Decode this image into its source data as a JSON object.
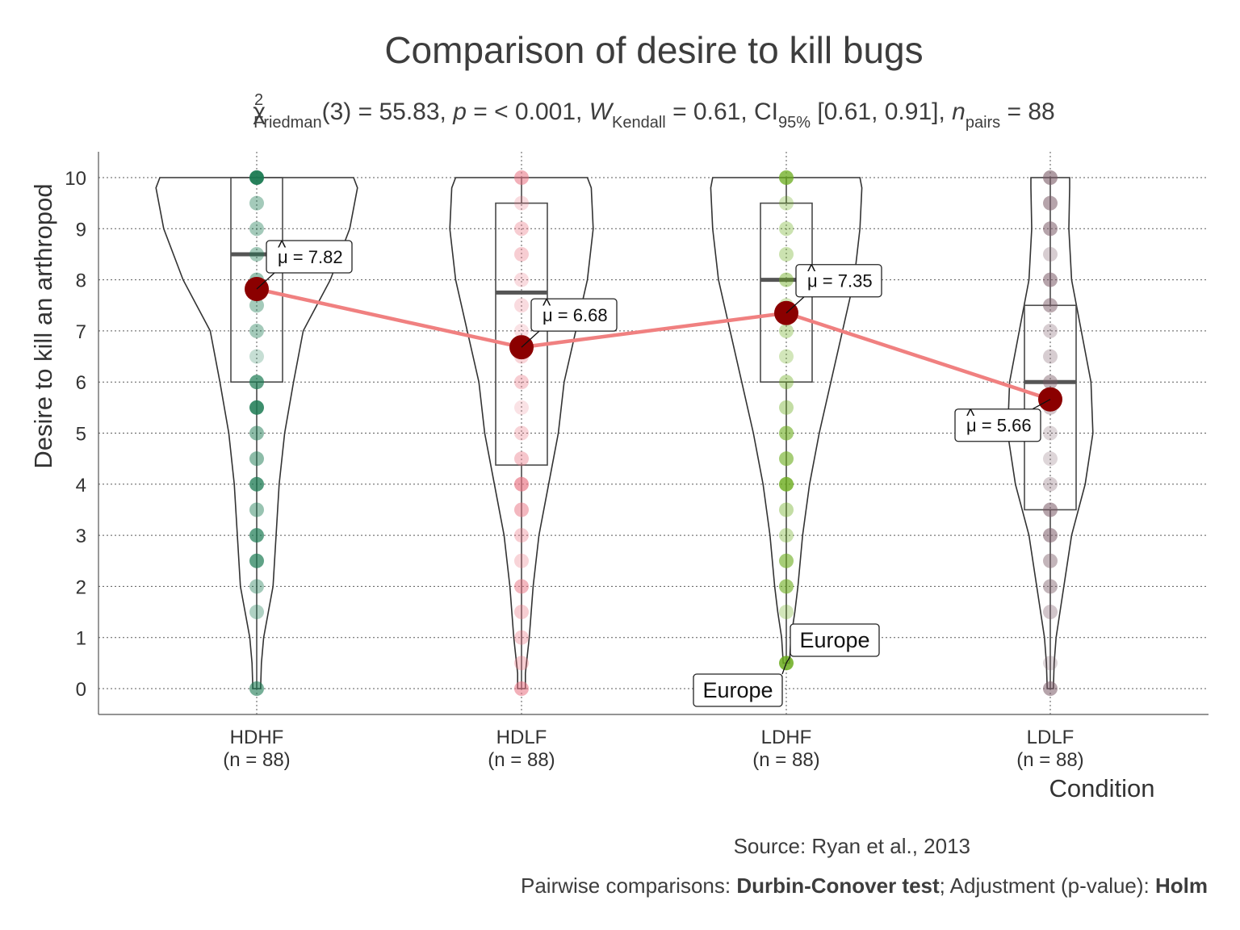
{
  "chart_data": {
    "type": "violin",
    "title": "Comparison of desire to kill bugs",
    "subtitle": {
      "chi": "χ",
      "chi_sup": "2",
      "chi_sub": "Friedman",
      "stat_text": "(3) = 55.83, ",
      "p_symbol": "p",
      "p_text": " = < 0.001, ",
      "w_symbol": "W",
      "w_sub": "Kendall",
      "w_text": " = 0.61, CI",
      "ci_sub": "95%",
      "ci_text": " [0.61, 0.91], ",
      "n_symbol": "n",
      "n_sub": "pairs",
      "n_text": " = 88"
    },
    "xlabel": "Condition",
    "ylabel": "Desire to kill an arthropod",
    "ylim": [
      -0.5,
      10.5
    ],
    "yticks": [
      0,
      1,
      2,
      3,
      4,
      5,
      6,
      7,
      8,
      9,
      10
    ],
    "grid": true,
    "categories": [
      {
        "name": "HDHF",
        "n_label": "(n = 88)",
        "color": "#1b7a52",
        "mean": 7.82,
        "mean_label": "7.82",
        "median": 8.5,
        "q1": 6.0,
        "q3": 10.0,
        "whisker_low": 0.0,
        "whisker_high": 10.0,
        "points": [
          10,
          9.5,
          9,
          8.5,
          8,
          7.5,
          7,
          6.5,
          6,
          5.5,
          5,
          4.5,
          4,
          3.5,
          3,
          2.5,
          2,
          1.5,
          0
        ],
        "point_opacity": [
          0.95,
          0.4,
          0.4,
          0.4,
          0.45,
          0.4,
          0.4,
          0.25,
          0.7,
          0.85,
          0.5,
          0.5,
          0.75,
          0.45,
          0.7,
          0.7,
          0.4,
          0.35,
          0.6
        ],
        "density": [
          [
            0,
            0.1
          ],
          [
            0.5,
            0.12
          ],
          [
            1,
            0.18
          ],
          [
            1.5,
            0.3
          ],
          [
            2,
            0.42
          ],
          [
            3,
            0.5
          ],
          [
            4,
            0.58
          ],
          [
            5,
            0.72
          ],
          [
            6,
            0.95
          ],
          [
            7,
            1.2
          ],
          [
            8,
            1.9
          ],
          [
            9,
            2.4
          ],
          [
            9.8,
            2.6
          ],
          [
            10,
            2.5
          ]
        ]
      },
      {
        "name": "HDLF",
        "n_label": "(n = 88)",
        "color": "#e8707f",
        "mean": 6.68,
        "mean_label": "6.68",
        "median": 7.75,
        "q1": 4.375,
        "q3": 9.5,
        "whisker_low": 0.0,
        "whisker_high": 10.0,
        "points": [
          10,
          9.5,
          9,
          8.5,
          8,
          7.5,
          7,
          6.5,
          6,
          5.5,
          5,
          4.5,
          4,
          3.5,
          3,
          2.5,
          2,
          1.5,
          1,
          0.5,
          0
        ],
        "point_opacity": [
          0.55,
          0.25,
          0.35,
          0.35,
          0.25,
          0.25,
          0.2,
          0.3,
          0.35,
          0.2,
          0.3,
          0.4,
          0.65,
          0.5,
          0.35,
          0.3,
          0.5,
          0.35,
          0.35,
          0.35,
          0.55
        ],
        "density": [
          [
            0,
            0.1
          ],
          [
            0.3,
            0.1
          ],
          [
            1,
            0.2
          ],
          [
            2,
            0.3
          ],
          [
            3,
            0.45
          ],
          [
            4,
            0.7
          ],
          [
            5,
            0.95
          ],
          [
            6,
            1.1
          ],
          [
            7,
            1.4
          ],
          [
            8,
            1.7
          ],
          [
            9,
            1.85
          ],
          [
            9.8,
            1.8
          ],
          [
            10,
            1.7
          ]
        ]
      },
      {
        "name": "LDHF",
        "n_label": "(n = 88)",
        "color": "#6aab1c",
        "mean": 7.35,
        "mean_label": "7.35",
        "median": 8.0,
        "q1": 6.0,
        "q3": 9.5,
        "whisker_low": 0.5,
        "whisker_high": 10.0,
        "points": [
          10,
          9.5,
          9,
          8.5,
          8,
          7.5,
          7,
          6.5,
          6,
          5.5,
          5,
          4.5,
          4,
          3.5,
          3,
          2.5,
          2,
          1.5,
          0.5
        ],
        "point_opacity": [
          0.75,
          0.3,
          0.35,
          0.35,
          0.45,
          0.3,
          0.35,
          0.3,
          0.4,
          0.4,
          0.6,
          0.6,
          0.8,
          0.4,
          0.35,
          0.6,
          0.6,
          0.3,
          0.85
        ],
        "density": [
          [
            0.5,
            0.08
          ],
          [
            1,
            0.12
          ],
          [
            1.5,
            0.22
          ],
          [
            2,
            0.3
          ],
          [
            3,
            0.42
          ],
          [
            4,
            0.6
          ],
          [
            5,
            0.85
          ],
          [
            6,
            1.15
          ],
          [
            7,
            1.45
          ],
          [
            8,
            1.75
          ],
          [
            9,
            1.9
          ],
          [
            9.8,
            1.95
          ],
          [
            10,
            1.9
          ]
        ]
      },
      {
        "name": "LDLF",
        "n_label": "(n = 88)",
        "color": "#7a5a66",
        "mean": 5.66,
        "mean_label": "5.66",
        "median": 6.0,
        "q1": 3.5,
        "q3": 7.5,
        "whisker_low": 0.0,
        "whisker_high": 10.0,
        "points": [
          10,
          9.5,
          9,
          8.5,
          8,
          7.5,
          7,
          6.5,
          6,
          5.5,
          5,
          4.5,
          4,
          3.5,
          3,
          2.5,
          2,
          1.5,
          0.5,
          0
        ],
        "point_opacity": [
          0.6,
          0.55,
          0.55,
          0.3,
          0.55,
          0.5,
          0.3,
          0.3,
          0.45,
          0.35,
          0.25,
          0.25,
          0.3,
          0.55,
          0.55,
          0.45,
          0.45,
          0.35,
          0.25,
          0.55
        ],
        "density": [
          [
            0,
            0.08
          ],
          [
            0.5,
            0.1
          ],
          [
            1,
            0.15
          ],
          [
            2,
            0.35
          ],
          [
            3,
            0.55
          ],
          [
            4,
            0.9
          ],
          [
            5,
            1.1
          ],
          [
            6,
            1.05
          ],
          [
            7,
            0.8
          ],
          [
            8,
            0.55
          ],
          [
            9,
            0.48
          ],
          [
            9.8,
            0.5
          ],
          [
            10,
            0.5
          ]
        ]
      }
    ],
    "mean_symbol": "μ",
    "mean_line_color": "#f08080",
    "mean_point_color": "#8b0000",
    "outlier_labels": [
      {
        "category": "LDHF",
        "value": 0.5,
        "text": "Europe"
      },
      {
        "category": "LDHF",
        "value": 0.5,
        "text": "Europe"
      }
    ],
    "caption": {
      "source": "Source: Ryan et al., 2013",
      "pairwise_prefix": "Pairwise comparisons: ",
      "pairwise_test": "Durbin-Conover test",
      "pairwise_mid": "; Adjustment (p-value): ",
      "pairwise_adj": "Holm"
    }
  }
}
